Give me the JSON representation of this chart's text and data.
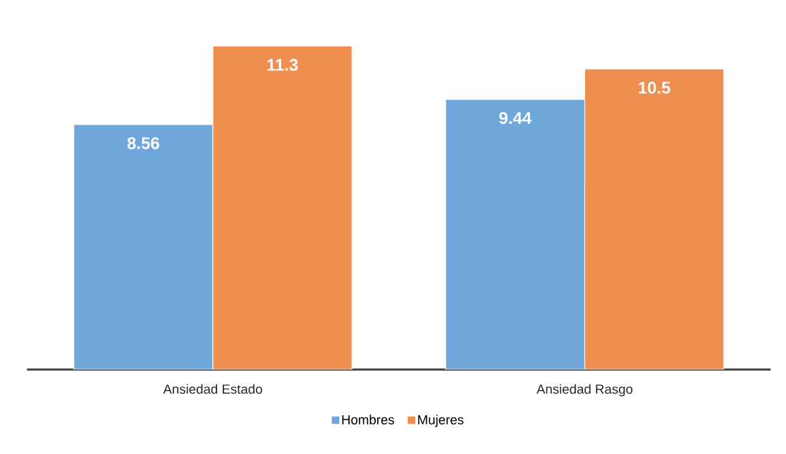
{
  "chart_data": {
    "type": "bar",
    "categories": [
      "Ansiedad Estado",
      "Ansiedad Rasgo"
    ],
    "series": [
      {
        "name": "Hombres",
        "color": "#70a7db",
        "values": [
          8.56,
          9.44
        ]
      },
      {
        "name": "Mujeres",
        "color": "#ef8f4f",
        "values": [
          11.3,
          10.5
        ]
      }
    ],
    "data_labels": true,
    "legend": "bottom"
  }
}
